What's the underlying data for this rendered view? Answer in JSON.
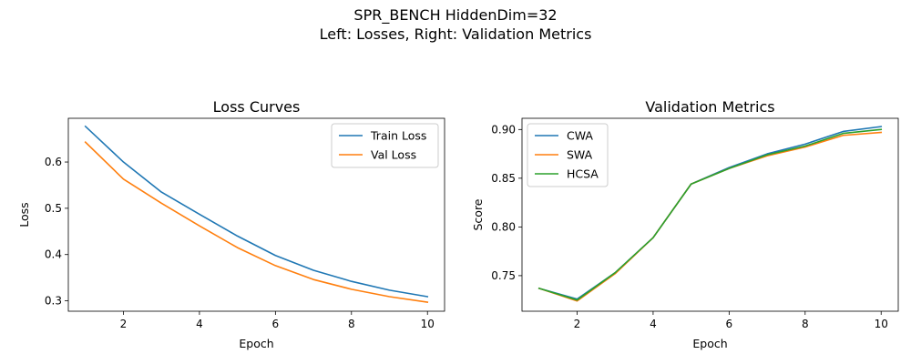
{
  "suptitle": {
    "line1": "SPR_BENCH HiddenDim=32",
    "line2": "Left: Losses, Right: Validation Metrics"
  },
  "chart_data": [
    {
      "type": "line",
      "title": "Loss Curves",
      "xlabel": "Epoch",
      "ylabel": "Loss",
      "x": [
        1,
        2,
        3,
        4,
        5,
        6,
        7,
        8,
        9,
        10
      ],
      "xlim": [
        0.55,
        10.45
      ],
      "ylim": [
        0.2775,
        0.6945
      ],
      "xticks": [
        2,
        4,
        6,
        8,
        10
      ],
      "yticks": [
        0.3,
        0.4,
        0.5,
        0.6
      ],
      "ytick_labels": [
        "0.3",
        "0.4",
        "0.5",
        "0.6"
      ],
      "grid": false,
      "legend_placement": "upper-right",
      "series": [
        {
          "name": "Train Loss",
          "color": "#1f77b4",
          "values": [
            0.677,
            0.6,
            0.535,
            0.487,
            0.44,
            0.398,
            0.366,
            0.342,
            0.323,
            0.309
          ]
        },
        {
          "name": "Val Loss",
          "color": "#ff7f0e",
          "values": [
            0.643,
            0.563,
            0.511,
            0.462,
            0.415,
            0.376,
            0.346,
            0.325,
            0.309,
            0.297
          ]
        }
      ]
    },
    {
      "type": "line",
      "title": "Validation Metrics",
      "xlabel": "Epoch",
      "ylabel": "Score",
      "x": [
        1,
        2,
        3,
        4,
        5,
        6,
        7,
        8,
        9,
        10
      ],
      "xlim": [
        0.55,
        10.45
      ],
      "ylim": [
        0.7135,
        0.9115
      ],
      "xticks": [
        2,
        4,
        6,
        8,
        10
      ],
      "yticks": [
        0.75,
        0.8,
        0.85,
        0.9
      ],
      "ytick_labels": [
        "0.75",
        "0.80",
        "0.85",
        "0.90"
      ],
      "grid": false,
      "legend_placement": "upper-left",
      "series": [
        {
          "name": "CWA",
          "color": "#1f77b4",
          "values": [
            0.737,
            0.726,
            0.753,
            0.789,
            0.844,
            0.861,
            0.875,
            0.885,
            0.898,
            0.903
          ]
        },
        {
          "name": "SWA",
          "color": "#ff7f0e",
          "values": [
            0.737,
            0.724,
            0.752,
            0.789,
            0.844,
            0.86,
            0.873,
            0.882,
            0.894,
            0.897
          ]
        },
        {
          "name": "HCSA",
          "color": "#2ca02c",
          "values": [
            0.737,
            0.725,
            0.753,
            0.789,
            0.844,
            0.86,
            0.874,
            0.883,
            0.896,
            0.9
          ]
        }
      ]
    }
  ]
}
